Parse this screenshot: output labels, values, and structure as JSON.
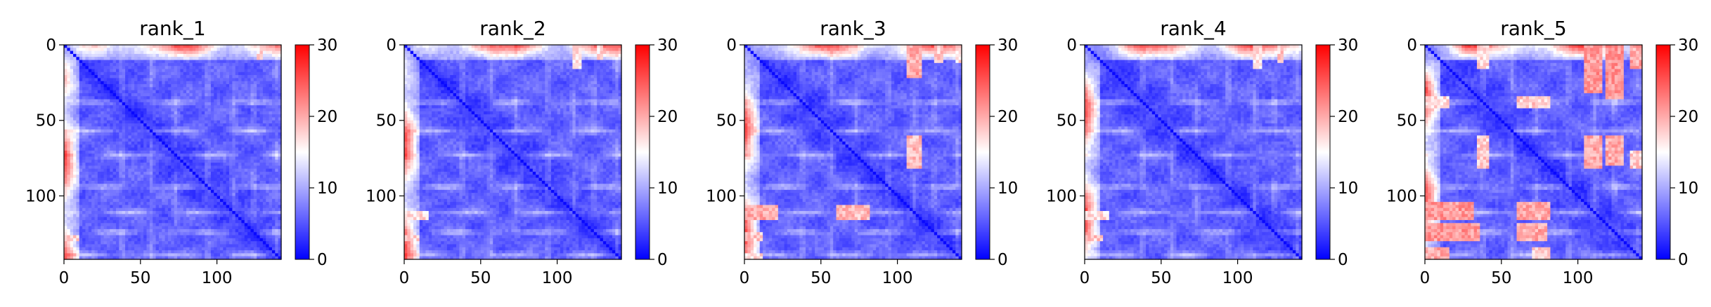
{
  "chart_data": [
    {
      "type": "heatmap",
      "title": "rank_1",
      "xlim": [
        0,
        142
      ],
      "ylim": [
        142,
        0
      ],
      "x_ticks": [
        0,
        50,
        100
      ],
      "y_ticks": [
        0,
        50,
        100
      ],
      "colorbar": {
        "min": 0,
        "max": 30,
        "ticks": [
          0,
          10,
          20,
          30
        ],
        "colormap": "bwr",
        "colors": [
          "#0000ff",
          "#ffffff",
          "#ff0000"
        ]
      },
      "red_bands": [
        {
          "rows": [
            125,
            129
          ],
          "cols": [
            0,
            8
          ],
          "value": 17
        }
      ]
    },
    {
      "type": "heatmap",
      "title": "rank_2",
      "xlim": [
        0,
        142
      ],
      "ylim": [
        142,
        0
      ],
      "x_ticks": [
        0,
        50,
        100
      ],
      "y_ticks": [
        0,
        50,
        100
      ],
      "colorbar": {
        "min": 0,
        "max": 30,
        "ticks": [
          0,
          10,
          20,
          30
        ],
        "colormap": "bwr",
        "colors": [
          "#0000ff",
          "#ffffff",
          "#ff0000"
        ]
      },
      "red_bands": [
        {
          "rows": [
            110,
            114
          ],
          "cols": [
            0,
            15
          ],
          "value": 17
        },
        {
          "rows": [
            125,
            129
          ],
          "cols": [
            0,
            8
          ],
          "value": 17
        }
      ]
    },
    {
      "type": "heatmap",
      "title": "rank_3",
      "xlim": [
        0,
        142
      ],
      "ylim": [
        142,
        0
      ],
      "x_ticks": [
        0,
        50,
        100
      ],
      "y_ticks": [
        0,
        50,
        100
      ],
      "colorbar": {
        "min": 0,
        "max": 30,
        "ticks": [
          0,
          10,
          20,
          30
        ],
        "colormap": "bwr",
        "colors": [
          "#0000ff",
          "#ffffff",
          "#ff0000"
        ]
      },
      "red_bands": [
        {
          "rows": [
            106,
            115
          ],
          "cols": [
            0,
            20
          ],
          "value": 20
        },
        {
          "rows": [
            106,
            115
          ],
          "cols": [
            60,
            80
          ],
          "value": 19
        },
        {
          "rows": [
            124,
            129
          ],
          "cols": [
            0,
            10
          ],
          "value": 18
        },
        {
          "rows": [
            138,
            142
          ],
          "cols": [
            0,
            10
          ],
          "value": 17
        }
      ]
    },
    {
      "type": "heatmap",
      "title": "rank_4",
      "xlim": [
        0,
        142
      ],
      "ylim": [
        142,
        0
      ],
      "x_ticks": [
        0,
        50,
        100
      ],
      "y_ticks": [
        0,
        50,
        100
      ],
      "colorbar": {
        "min": 0,
        "max": 30,
        "ticks": [
          0,
          10,
          20,
          30
        ],
        "colormap": "bwr",
        "colors": [
          "#0000ff",
          "#ffffff",
          "#ff0000"
        ]
      },
      "red_bands": [
        {
          "rows": [
            110,
            114
          ],
          "cols": [
            0,
            15
          ],
          "value": 17
        },
        {
          "rows": [
            125,
            129
          ],
          "cols": [
            0,
            10
          ],
          "value": 18
        }
      ]
    },
    {
      "type": "heatmap",
      "title": "rank_5",
      "xlim": [
        0,
        142
      ],
      "ylim": [
        142,
        0
      ],
      "x_ticks": [
        0,
        50,
        100
      ],
      "y_ticks": [
        0,
        50,
        100
      ],
      "colorbar": {
        "min": 0,
        "max": 30,
        "ticks": [
          0,
          10,
          20,
          30
        ],
        "colormap": "bwr",
        "colors": [
          "#0000ff",
          "#ffffff",
          "#ff0000"
        ]
      },
      "red_bands": [
        {
          "rows": [
            33,
            40
          ],
          "cols": [
            0,
            15
          ],
          "value": 17
        },
        {
          "rows": [
            33,
            40
          ],
          "cols": [
            60,
            80
          ],
          "value": 18
        },
        {
          "rows": [
            104,
            114
          ],
          "cols": [
            0,
            30
          ],
          "value": 21
        },
        {
          "rows": [
            104,
            114
          ],
          "cols": [
            60,
            80
          ],
          "value": 20
        },
        {
          "rows": [
            117,
            128
          ],
          "cols": [
            0,
            35
          ],
          "value": 21
        },
        {
          "rows": [
            117,
            128
          ],
          "cols": [
            60,
            78
          ],
          "value": 20
        },
        {
          "rows": [
            134,
            142
          ],
          "cols": [
            0,
            15
          ],
          "value": 20
        },
        {
          "rows": [
            134,
            142
          ],
          "cols": [
            70,
            80
          ],
          "value": 18
        }
      ]
    }
  ]
}
